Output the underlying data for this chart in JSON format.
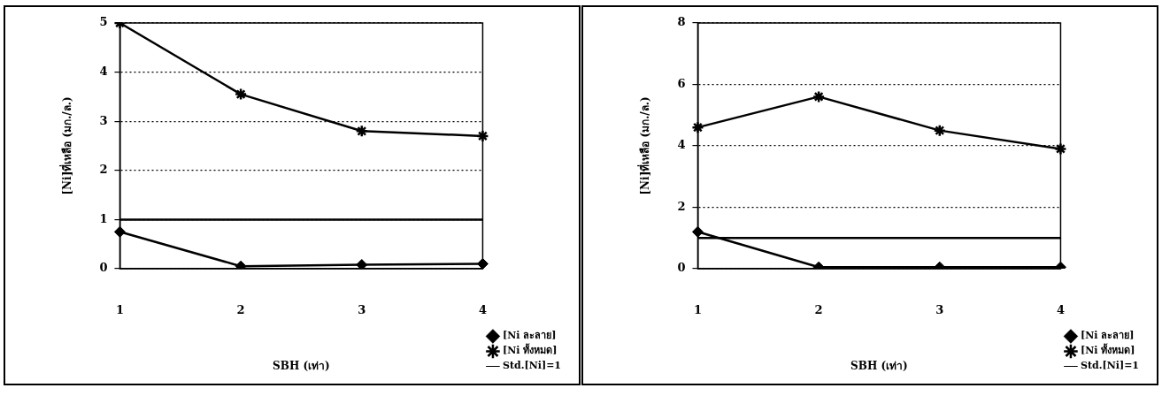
{
  "chart_data": [
    {
      "type": "line",
      "xlabel": "SBH (เท่า)",
      "ylabel": "[Ni]ที่เหลือ (มก./ล.)",
      "categories": [
        "1",
        "2",
        "3",
        "4"
      ],
      "series": [
        {
          "name": "[Ni ละลาย]",
          "color": "#000000",
          "marker": "diamond",
          "values": [
            0.75,
            0.05,
            0.08,
            0.1
          ]
        },
        {
          "name": "[Ni ทั้งหมด]",
          "color": "#000000",
          "marker": "cross",
          "values": [
            5.0,
            3.55,
            2.8,
            2.7
          ]
        },
        {
          "name": "Std.[Ni]=1",
          "color": "#000000",
          "marker": "none",
          "values": [
            1,
            1,
            1,
            1
          ]
        }
      ],
      "ylim": [
        0,
        5
      ],
      "yticks": [
        0,
        1,
        2,
        3,
        4,
        5
      ],
      "grid": "y",
      "legend": "bottom right",
      "line_style": "solid"
    },
    {
      "type": "line",
      "xlabel": "SBH (เท่า)",
      "ylabel": "[Ni]ที่เหลือ (มก./ล.)",
      "categories": [
        "1",
        "2",
        "3",
        "4"
      ],
      "series": [
        {
          "name": "[Ni ละลาย]",
          "color": "#000000",
          "marker": "diamond",
          "values": [
            1.2,
            0.05,
            0.05,
            0.05
          ]
        },
        {
          "name": "[Ni ทั้งหมด]",
          "color": "#000000",
          "marker": "cross",
          "values": [
            4.6,
            5.6,
            4.5,
            3.9
          ]
        },
        {
          "name": "Std.[Ni]=1",
          "color": "#000000",
          "marker": "none",
          "values": [
            1,
            1,
            1,
            1
          ]
        }
      ],
      "ylim": [
        0,
        8
      ],
      "yticks": [
        0,
        2,
        4,
        6,
        8
      ],
      "grid": "y",
      "legend": "bottom right",
      "line_style": "solid"
    }
  ]
}
